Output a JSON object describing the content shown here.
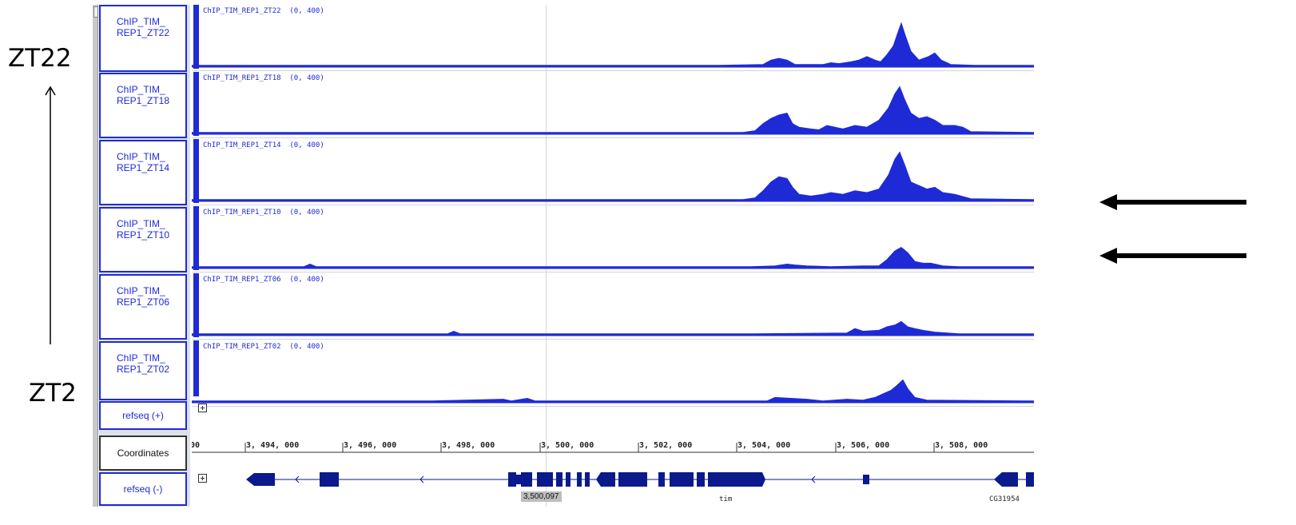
{
  "annotations": {
    "top_label": "ZT22",
    "bottom_label": "ZT2"
  },
  "tracks": [
    {
      "name_line1": "ChIP_TIM_",
      "name_line2": "REP1_ZT22",
      "label": "ChIP_TIM_REP1_ZT22",
      "range": "(0, 400)",
      "profile": [
        [
          0,
          2
        ],
        [
          120,
          2
        ],
        [
          180,
          2
        ],
        [
          250,
          2
        ],
        [
          330,
          2
        ],
        [
          400,
          2
        ],
        [
          460,
          2
        ],
        [
          520,
          2
        ],
        [
          600,
          2
        ],
        [
          660,
          2
        ],
        [
          715,
          3
        ],
        [
          725,
          8
        ],
        [
          735,
          10
        ],
        [
          745,
          8
        ],
        [
          755,
          3
        ],
        [
          790,
          3
        ],
        [
          800,
          5
        ],
        [
          810,
          4
        ],
        [
          825,
          6
        ],
        [
          835,
          8
        ],
        [
          845,
          12
        ],
        [
          855,
          8
        ],
        [
          862,
          6
        ],
        [
          870,
          14
        ],
        [
          878,
          24
        ],
        [
          884,
          40
        ],
        [
          888,
          50
        ],
        [
          893,
          36
        ],
        [
          900,
          18
        ],
        [
          910,
          8
        ],
        [
          922,
          12
        ],
        [
          930,
          16
        ],
        [
          938,
          8
        ],
        [
          950,
          3
        ],
        [
          980,
          2
        ],
        [
          1054,
          2
        ]
      ]
    },
    {
      "name_line1": "ChIP_TIM_",
      "name_line2": "REP1_ZT18",
      "label": "ChIP_TIM_REP1_ZT18",
      "range": "(0, 400)",
      "profile": [
        [
          0,
          2
        ],
        [
          200,
          2
        ],
        [
          400,
          2
        ],
        [
          600,
          2
        ],
        [
          690,
          2
        ],
        [
          705,
          4
        ],
        [
          715,
          12
        ],
        [
          725,
          18
        ],
        [
          735,
          22
        ],
        [
          745,
          24
        ],
        [
          752,
          12
        ],
        [
          760,
          8
        ],
        [
          775,
          6
        ],
        [
          785,
          5
        ],
        [
          795,
          10
        ],
        [
          805,
          8
        ],
        [
          815,
          6
        ],
        [
          830,
          10
        ],
        [
          845,
          8
        ],
        [
          860,
          16
        ],
        [
          872,
          30
        ],
        [
          880,
          46
        ],
        [
          886,
          54
        ],
        [
          892,
          40
        ],
        [
          900,
          24
        ],
        [
          910,
          18
        ],
        [
          920,
          20
        ],
        [
          930,
          16
        ],
        [
          940,
          10
        ],
        [
          955,
          10
        ],
        [
          965,
          8
        ],
        [
          975,
          3
        ],
        [
          1054,
          2
        ]
      ]
    },
    {
      "name_line1": "ChIP_TIM_",
      "name_line2": "REP1_ZT14",
      "label": "ChIP_TIM_REP1_ZT14",
      "range": "(0, 400)",
      "profile": [
        [
          0,
          2
        ],
        [
          200,
          2
        ],
        [
          400,
          2
        ],
        [
          600,
          2
        ],
        [
          690,
          2
        ],
        [
          705,
          4
        ],
        [
          715,
          12
        ],
        [
          725,
          22
        ],
        [
          735,
          28
        ],
        [
          745,
          26
        ],
        [
          752,
          16
        ],
        [
          760,
          8
        ],
        [
          775,
          6
        ],
        [
          790,
          8
        ],
        [
          800,
          10
        ],
        [
          815,
          8
        ],
        [
          830,
          12
        ],
        [
          845,
          10
        ],
        [
          860,
          14
        ],
        [
          872,
          30
        ],
        [
          880,
          48
        ],
        [
          886,
          56
        ],
        [
          892,
          42
        ],
        [
          900,
          22
        ],
        [
          910,
          18
        ],
        [
          920,
          14
        ],
        [
          930,
          16
        ],
        [
          940,
          10
        ],
        [
          955,
          8
        ],
        [
          975,
          3
        ],
        [
          1054,
          2
        ]
      ]
    },
    {
      "name_line1": "ChIP_TIM_",
      "name_line2": "REP1_ZT10",
      "label": "ChIP_TIM_REP1_ZT10",
      "range": "(0, 400)",
      "profile": [
        [
          0,
          2
        ],
        [
          140,
          2
        ],
        [
          148,
          5
        ],
        [
          156,
          2
        ],
        [
          300,
          2
        ],
        [
          500,
          2
        ],
        [
          700,
          2
        ],
        [
          730,
          3
        ],
        [
          745,
          5
        ],
        [
          755,
          4
        ],
        [
          770,
          3
        ],
        [
          800,
          2
        ],
        [
          840,
          3
        ],
        [
          860,
          3
        ],
        [
          870,
          10
        ],
        [
          880,
          20
        ],
        [
          888,
          24
        ],
        [
          896,
          18
        ],
        [
          905,
          8
        ],
        [
          915,
          6
        ],
        [
          925,
          6
        ],
        [
          940,
          3
        ],
        [
          960,
          2
        ],
        [
          1054,
          2
        ]
      ]
    },
    {
      "name_line1": "ChIP_TIM_",
      "name_line2": "REP1_ZT06",
      "label": "ChIP_TIM_REP1_ZT06",
      "range": "(0, 400)",
      "profile": [
        [
          0,
          2
        ],
        [
          200,
          2
        ],
        [
          320,
          2
        ],
        [
          328,
          5
        ],
        [
          336,
          2
        ],
        [
          500,
          2
        ],
        [
          700,
          2
        ],
        [
          820,
          3
        ],
        [
          830,
          8
        ],
        [
          840,
          5
        ],
        [
          860,
          6
        ],
        [
          870,
          10
        ],
        [
          880,
          12
        ],
        [
          888,
          16
        ],
        [
          896,
          10
        ],
        [
          905,
          8
        ],
        [
          915,
          6
        ],
        [
          930,
          4
        ],
        [
          960,
          2
        ],
        [
          1054,
          2
        ]
      ]
    },
    {
      "name_line1": "ChIP_TIM_",
      "name_line2": "REP1_ZT02",
      "label": "ChIP_TIM_REP1_ZT02",
      "range": "(0, 400)",
      "profile": [
        [
          0,
          2
        ],
        [
          100,
          2
        ],
        [
          300,
          2
        ],
        [
          390,
          4
        ],
        [
          400,
          2
        ],
        [
          420,
          5
        ],
        [
          430,
          2
        ],
        [
          600,
          2
        ],
        [
          720,
          2
        ],
        [
          730,
          6
        ],
        [
          750,
          5
        ],
        [
          770,
          4
        ],
        [
          790,
          2
        ],
        [
          820,
          4
        ],
        [
          840,
          3
        ],
        [
          855,
          6
        ],
        [
          865,
          10
        ],
        [
          875,
          14
        ],
        [
          883,
          20
        ],
        [
          890,
          26
        ],
        [
          896,
          16
        ],
        [
          905,
          6
        ],
        [
          920,
          3
        ],
        [
          1054,
          2
        ]
      ]
    }
  ],
  "refseq_plus": {
    "name": "refseq (+)"
  },
  "coordinates": {
    "name": "Coordinates",
    "ticks": [
      "3, 494, 000",
      "3, 496, 000",
      "3, 498, 000",
      "3, 500, 000",
      "3, 502, 000",
      "3, 504, 000",
      "3, 506, 000",
      "3, 508, 000"
    ],
    "partial_tick": "00"
  },
  "refseq_minus": {
    "name": "refseq (-)"
  },
  "genes": {
    "tim_partial": "tim",
    "tim": "tim",
    "cg": "CG31954"
  },
  "cursor_position": "3,500,097",
  "colors": {
    "track": "#1e2ad6",
    "gene": "#0a1a8c",
    "arrow": "#000000"
  },
  "icons": {
    "expand": "plus-box-icon",
    "arrow": "left-arrow-icon"
  }
}
